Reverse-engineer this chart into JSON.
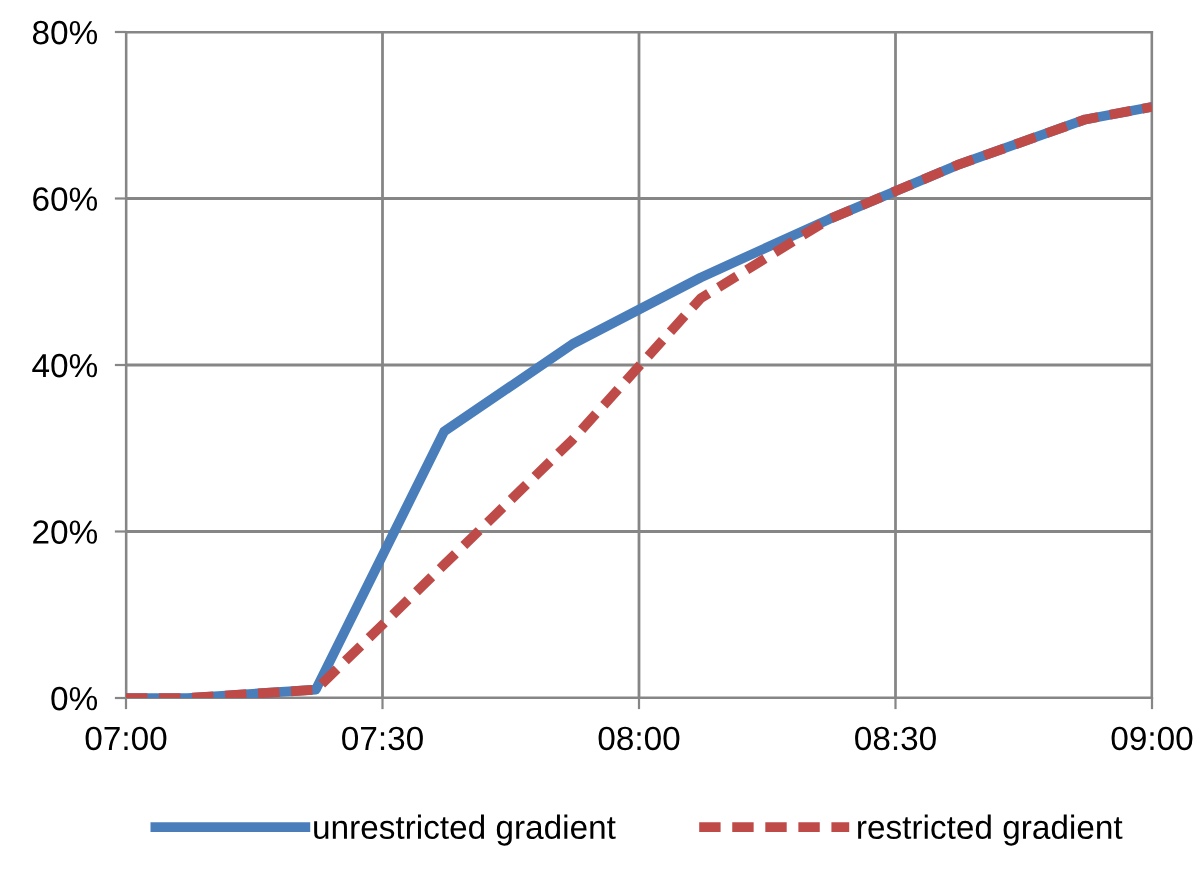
{
  "chart_data": {
    "type": "line",
    "x": [
      7.0,
      7.12,
      7.37,
      7.62,
      7.87,
      8.12,
      8.37,
      8.62,
      8.87,
      9.0
    ],
    "series": [
      {
        "name": "unrestricted gradient",
        "color": "#4a7ebb",
        "line_style": "solid",
        "values": [
          0,
          0,
          1,
          32,
          42.5,
          50.5,
          57.5,
          64,
          69.5,
          71
        ]
      },
      {
        "name": "restricted gradient",
        "color": "#be4b48",
        "line_style": "dashed",
        "values": [
          0,
          0,
          1,
          16,
          31,
          48,
          57.5,
          64,
          69.5,
          71
        ]
      }
    ],
    "xlim": [
      7.0,
      9.0
    ],
    "xticks": [
      {
        "value": 7.0,
        "label": "07:00"
      },
      {
        "value": 7.5,
        "label": "07:30"
      },
      {
        "value": 8.0,
        "label": "08:00"
      },
      {
        "value": 8.5,
        "label": "08:30"
      },
      {
        "value": 9.0,
        "label": "09:00"
      }
    ],
    "ylim": [
      0,
      80
    ],
    "yticks": [
      {
        "value": 0,
        "label": "0%"
      },
      {
        "value": 20,
        "label": "20%"
      },
      {
        "value": 40,
        "label": "40%"
      },
      {
        "value": 60,
        "label": "60%"
      },
      {
        "value": 80,
        "label": "80%"
      }
    ],
    "grid": true,
    "legend": "bottom",
    "marker": "none"
  }
}
